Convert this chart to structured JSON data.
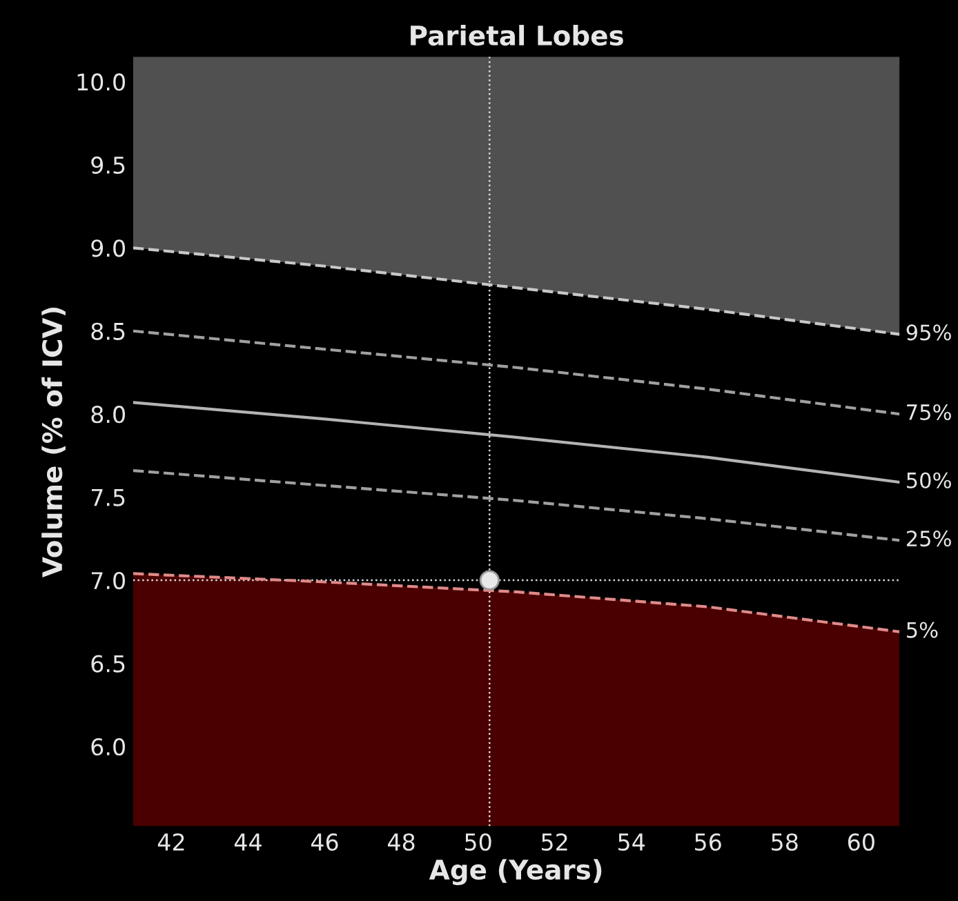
{
  "chart_data": {
    "type": "line",
    "title": "Parietal Lobes",
    "xlabel": "Age (Years)",
    "ylabel": "Volume (% of ICV)",
    "x": [
      41,
      46,
      51,
      56,
      61
    ],
    "series": [
      {
        "name": "95%",
        "color": "#c8c8c8",
        "line_style": "dashed",
        "values": [
          9.0,
          8.89,
          8.76,
          8.63,
          8.48
        ]
      },
      {
        "name": "75%",
        "color": "#a0a0a0",
        "line_style": "dashed",
        "values": [
          8.5,
          8.39,
          8.28,
          8.15,
          8.0
        ]
      },
      {
        "name": "50%",
        "color": "#b4b4b4",
        "line_style": "solid",
        "values": [
          8.07,
          7.97,
          7.86,
          7.74,
          7.59
        ]
      },
      {
        "name": "25%",
        "color": "#a0a0a0",
        "line_style": "dashed",
        "values": [
          7.66,
          7.57,
          7.48,
          7.37,
          7.24
        ]
      },
      {
        "name": "5%",
        "color": "#e08a8a",
        "line_style": "dashed",
        "values": [
          7.04,
          6.99,
          6.93,
          6.84,
          6.69
        ]
      },
      {
        "type": "scatter",
        "x": [
          50.3
        ],
        "color": "#e8e8e8",
        "marker": "circle",
        "values": [
          7.0
        ]
      }
    ],
    "ref_lines": [
      {
        "axis": "x",
        "value": 50.3,
        "color": "#dddddd",
        "line_style": "dotted"
      },
      {
        "axis": "y",
        "value": 7.0,
        "color": "#dddddd",
        "line_style": "dotted"
      }
    ],
    "xlim": [
      41.0,
      61.0
    ],
    "ylim": [
      5.52,
      10.15
    ],
    "xticks": [
      42,
      44,
      46,
      48,
      50,
      52,
      54,
      56,
      58,
      60
    ],
    "yticks": [
      {
        "value": 6.0,
        "label": "6.0"
      },
      {
        "value": 6.5,
        "label": "6.5"
      },
      {
        "value": 7.0,
        "label": "7.0"
      },
      {
        "value": 7.5,
        "label": "7.5"
      },
      {
        "value": 8.0,
        "label": "8.0"
      },
      {
        "value": 8.5,
        "label": "8.5"
      },
      {
        "value": 9.0,
        "label": "9.0"
      },
      {
        "value": 9.5,
        "label": "9.5"
      },
      {
        "value": 10.0,
        "label": "10.0"
      }
    ],
    "grid": false,
    "legend": false
  }
}
